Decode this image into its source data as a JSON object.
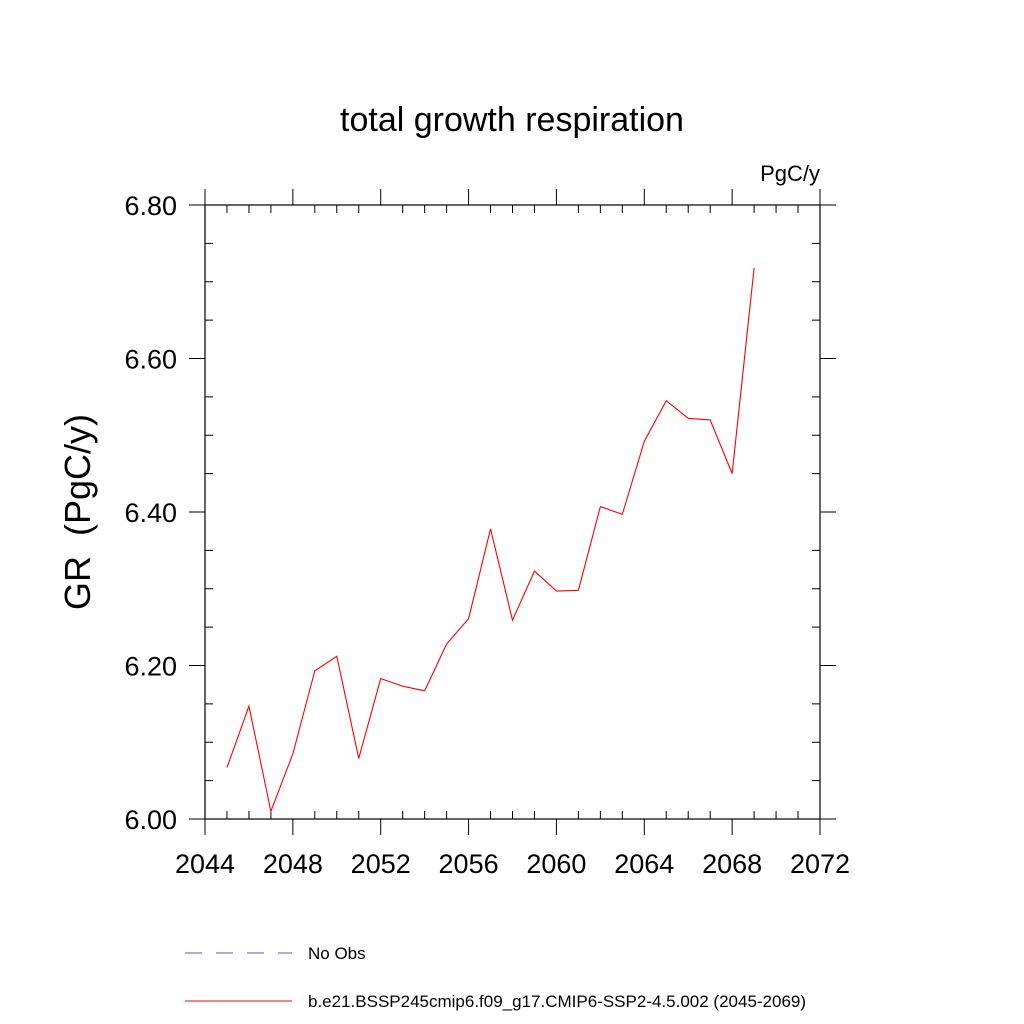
{
  "chart_data": {
    "type": "line",
    "title": "total growth respiration",
    "units_label": "PgC/y",
    "ylabel": "GR  (PgC/y)",
    "xlabel": "",
    "xlim": [
      2044,
      2072
    ],
    "ylim": [
      6.0,
      6.8
    ],
    "x_ticks": [
      "2044",
      "2048",
      "2052",
      "2056",
      "2060",
      "2064",
      "2068",
      "2072"
    ],
    "y_ticks": [
      "6.00",
      "6.20",
      "6.40",
      "6.60",
      "6.80"
    ],
    "grid": false,
    "legend_position": "bottom",
    "series": [
      {
        "name": "b.e21.BSSP245cmip6.f09_g17.CMIP6-SSP2-4.5.002 (2045-2069)",
        "color": "#ff0000",
        "style": "solid",
        "x": [
          2045,
          2046,
          2047,
          2048,
          2049,
          2050,
          2051,
          2052,
          2053,
          2054,
          2055,
          2056,
          2057,
          2058,
          2059,
          2060,
          2061,
          2062,
          2063,
          2064,
          2065,
          2066,
          2067,
          2068,
          2069
        ],
        "values": [
          6.067,
          6.147,
          6.01,
          6.085,
          6.193,
          6.212,
          6.079,
          6.183,
          6.173,
          6.167,
          6.228,
          6.261,
          6.378,
          6.259,
          6.323,
          6.297,
          6.298,
          6.407,
          6.397,
          6.492,
          6.545,
          6.522,
          6.52,
          6.45,
          6.718
        ]
      }
    ],
    "legend": [
      {
        "label": "No Obs",
        "color": "#5555cc",
        "style": "dashed"
      },
      {
        "label": "b.e21.BSSP245cmip6.f09_g17.CMIP6-SSP2-4.5.002 (2045-2069)",
        "color": "#ff0000",
        "style": "solid"
      }
    ]
  }
}
